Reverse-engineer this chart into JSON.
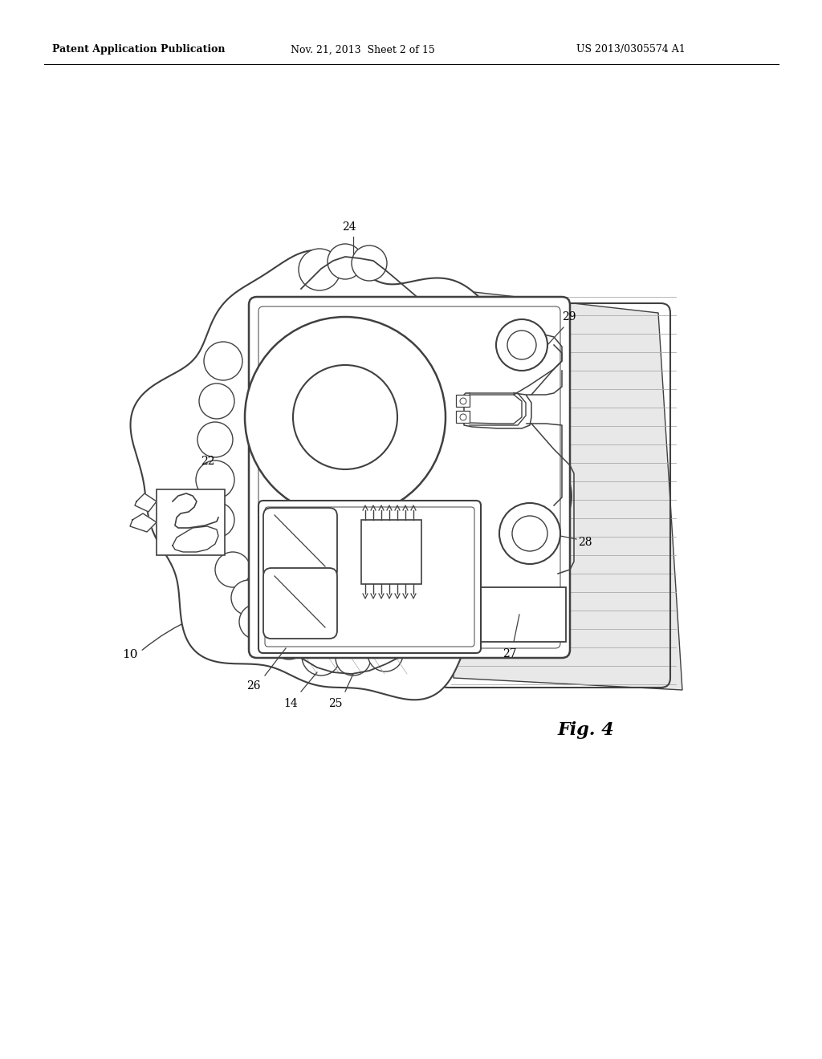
{
  "bg_color": "#ffffff",
  "header_left": "Patent Application Publication",
  "header_mid": "Nov. 21, 2013  Sheet 2 of 15",
  "header_right": "US 2013/0305574 A1",
  "fig_label": "Fig. 4",
  "line_color": "#404040",
  "line_width": 1.3
}
